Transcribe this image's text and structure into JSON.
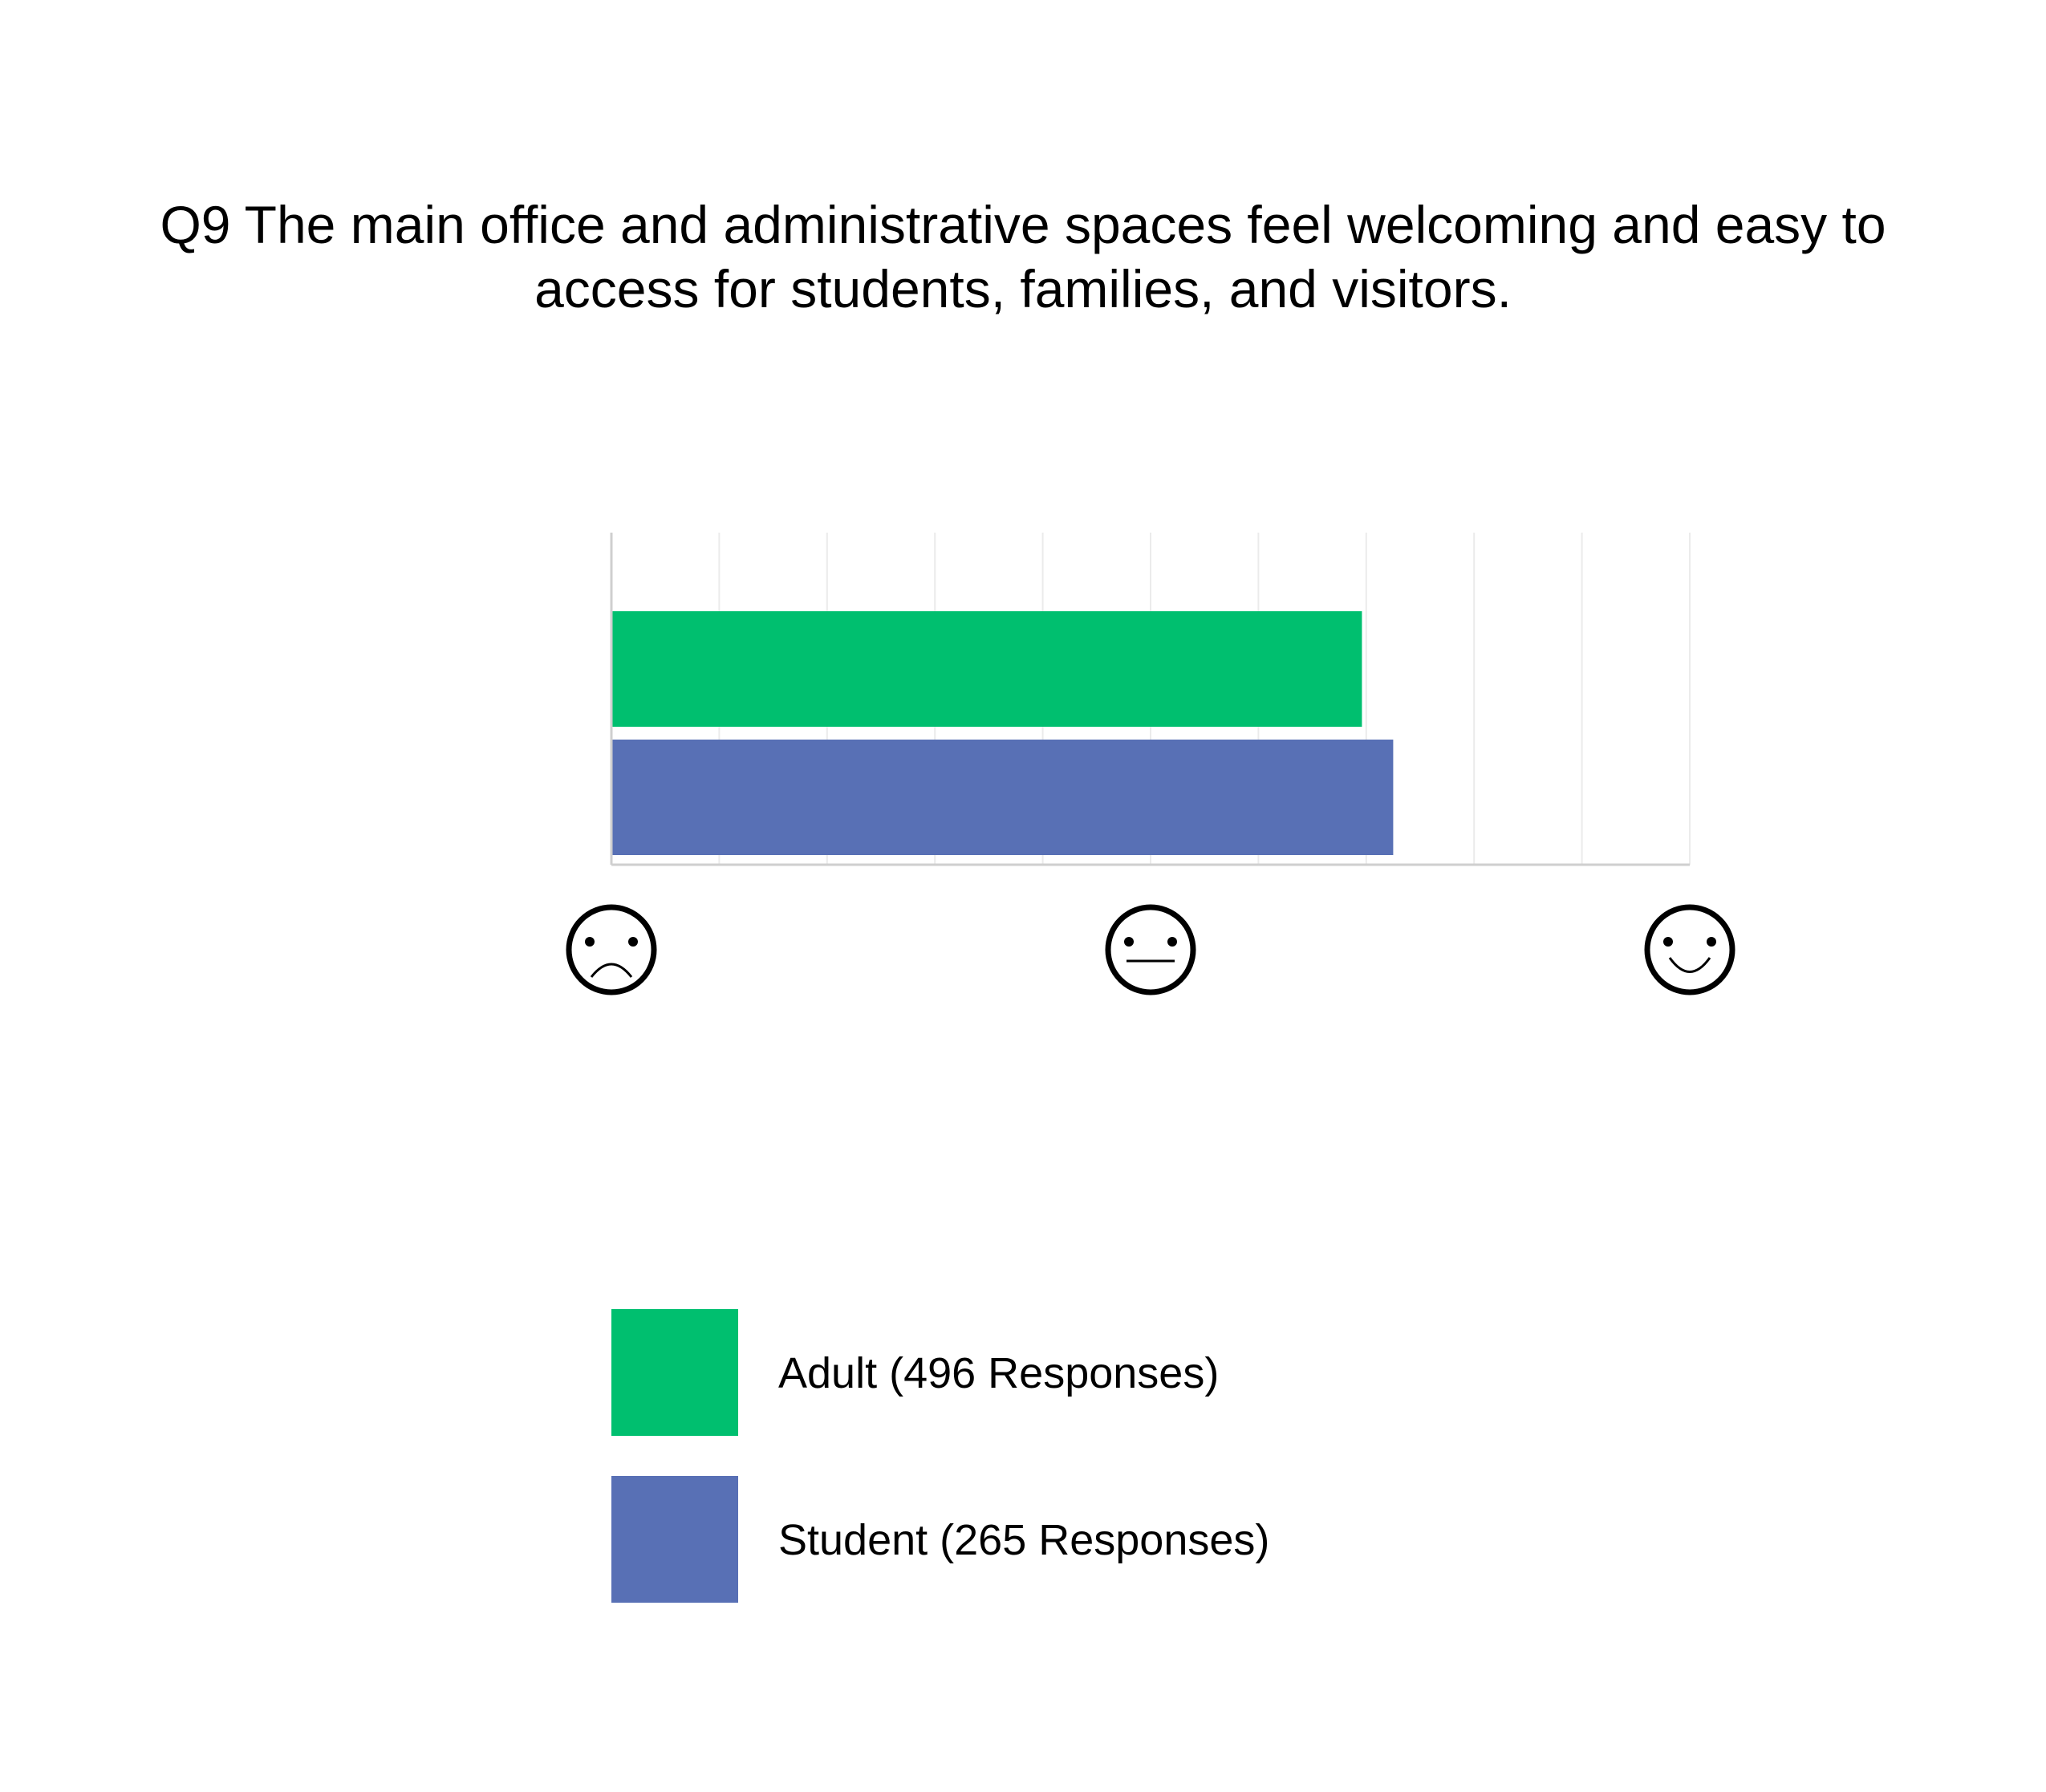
{
  "chart_data": {
    "type": "bar",
    "orientation": "horizontal",
    "title_lines": [
      "Q9 The main office and administrative spaces feel welcoming and easy to",
      "access for students, families, and visitors."
    ],
    "xlim": [
      0,
      10
    ],
    "x_axis_icons": [
      "frowning-face-icon",
      "neutral-face-icon",
      "smiling-face-icon"
    ],
    "x_axis_icon_values": [
      0,
      5,
      10
    ],
    "grid": true,
    "legend_position": "bottom",
    "series": [
      {
        "name": "Adult (496 Responses)",
        "value": 6.96,
        "color": "#00bf6f"
      },
      {
        "name": "Student (265 Responses)",
        "value": 7.25,
        "color": "#5870b5"
      }
    ]
  }
}
